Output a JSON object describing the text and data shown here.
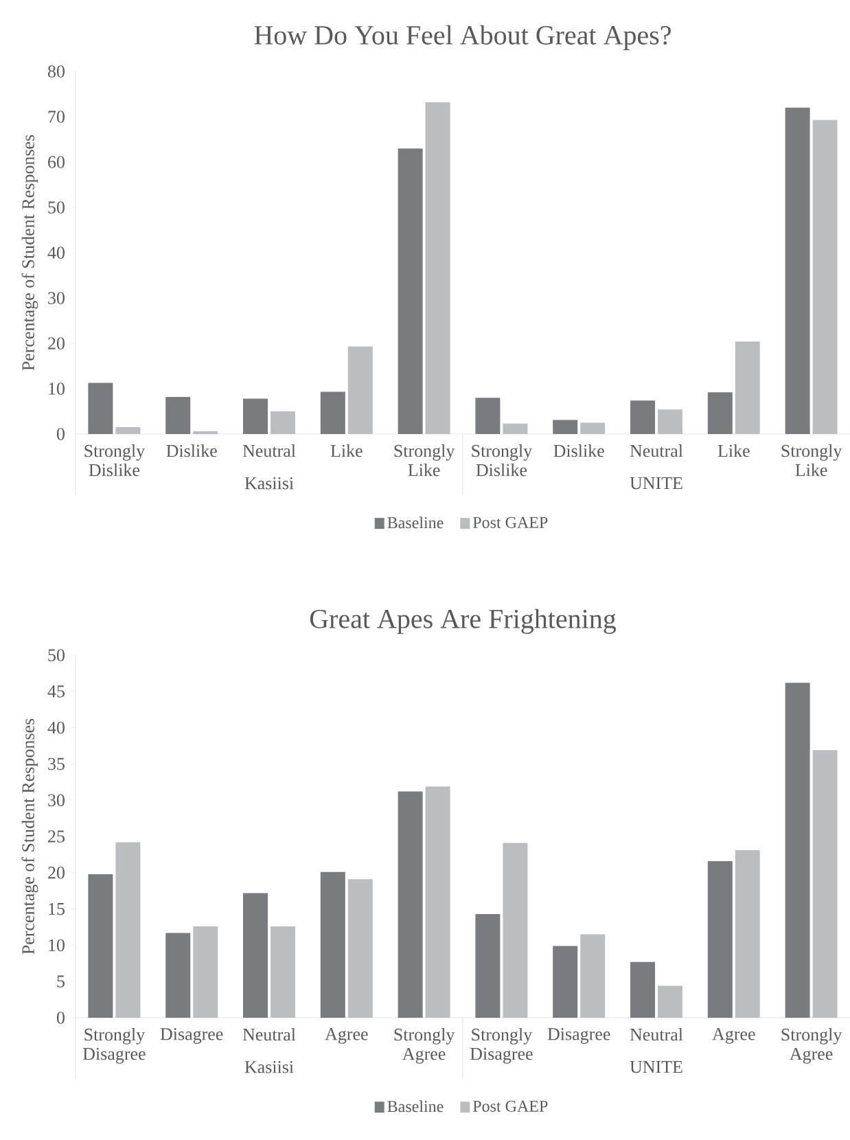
{
  "chart_data": [
    {
      "type": "bar",
      "title": "How Do You Feel About Great Apes?",
      "ylabel": "Percentage of Student Responses",
      "categories": [
        "Strongly Dislike",
        "Dislike",
        "Neutral",
        "Like",
        "Strongly Like",
        "Strongly Dislike",
        "Dislike",
        "Neutral",
        "Like",
        "Strongly Like"
      ],
      "series": [
        {
          "name": "Baseline",
          "color": "#7a7b7f",
          "values": [
            11.3,
            8.2,
            7.8,
            9.3,
            63,
            8,
            3.1,
            7.4,
            9.2,
            72
          ]
        },
        {
          "name": "Post GAEP",
          "color": "#bcbdc1",
          "values": [
            1.5,
            0.6,
            5.0,
            19.3,
            73.2,
            2.3,
            2.5,
            5.4,
            20.4,
            69.3
          ]
        }
      ],
      "ylim": [
        0,
        80
      ],
      "yticks": [
        0,
        10,
        20,
        30,
        40,
        50,
        60,
        70,
        80
      ],
      "legend": "bottom",
      "annotations": [
        "Kasiisi",
        "UNITE"
      ]
    },
    {
      "type": "bar",
      "title": "Great Apes Are Frightening",
      "ylabel": "Percentage of Student Responses",
      "categories": [
        "Strongly Disagree",
        "Disagree",
        "Neutral",
        "Agree",
        "Strongly Agree",
        "Strongly Disagree",
        "Disagree",
        "Neutral",
        "Agree",
        "Strongly Agree"
      ],
      "series": [
        {
          "name": "Baseline",
          "color": "#7a7b7f",
          "values": [
            19.8,
            11.7,
            17.2,
            20.1,
            31.2,
            14.3,
            9.9,
            7.7,
            21.6,
            46.2
          ]
        },
        {
          "name": "Post GAEP",
          "color": "#bcbdc1",
          "values": [
            24.2,
            12.6,
            12.6,
            19.1,
            31.9,
            24.1,
            11.5,
            4.4,
            23.1,
            36.9
          ]
        }
      ],
      "ylim": [
        0,
        50
      ],
      "yticks": [
        0,
        5,
        10,
        15,
        20,
        25,
        30,
        35,
        40,
        45,
        50
      ],
      "legend": "bottom",
      "annotations": [
        "Kasiisi",
        "UNITE"
      ]
    }
  ]
}
